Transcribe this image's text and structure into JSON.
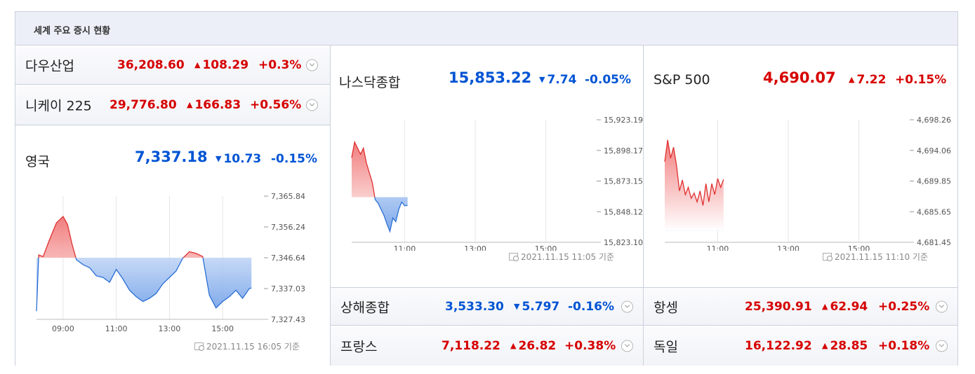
{
  "title": "세계 주요 증시 현황",
  "colors": {
    "up": "#d60000",
    "down": "#0054d4",
    "border": "#c9d0dc"
  },
  "icons": {
    "expand": "chevron-down-icon",
    "stamp": "clock-icon",
    "up": "triangle-up-icon",
    "down": "triangle-down-icon"
  },
  "rows": {
    "dow": {
      "name": "다우산업",
      "value": "36,208.60",
      "dir": "up",
      "arrow": "▲",
      "change": "108.29",
      "pct": "+0.3%"
    },
    "nikkei": {
      "name": "니케이 225",
      "value": "29,776.80",
      "dir": "up",
      "arrow": "▲",
      "change": "166.83",
      "pct": "+0.56%"
    },
    "shanghai": {
      "name": "상해종합",
      "value": "3,533.30",
      "dir": "down",
      "arrow": "▼",
      "change": "5.797",
      "pct": "-0.16%"
    },
    "france": {
      "name": "프랑스",
      "value": "7,118.22",
      "dir": "up",
      "arrow": "▲",
      "change": "26.82",
      "pct": "+0.38%"
    },
    "hangseng": {
      "name": "항셍",
      "value": "25,390.91",
      "dir": "up",
      "arrow": "▲",
      "change": "62.94",
      "pct": "+0.25%"
    },
    "germany": {
      "name": "독일",
      "value": "16,122.92",
      "dir": "up",
      "arrow": "▲",
      "change": "28.85",
      "pct": "+0.18%"
    }
  },
  "cards": {
    "uk": {
      "name": "영국",
      "value": "7,337.18",
      "dir": "down",
      "arrow": "▼",
      "change": "10.73",
      "pct": "-0.15%",
      "stamp": "2021.11.15 16:05 기준"
    },
    "nasdaq": {
      "name": "나스닥종합",
      "value": "15,853.22",
      "dir": "down",
      "arrow": "▼",
      "change": "7.74",
      "pct": "-0.05%",
      "stamp": "2021.11.15 11:05 기준"
    },
    "sp500": {
      "name": "S&P 500",
      "value": "4,690.07",
      "dir": "up",
      "arrow": "▲",
      "change": "7.22",
      "pct": "+0.15%",
      "stamp": "2021.11.15 11:10 기준"
    }
  },
  "chart_data": [
    {
      "id": "uk",
      "type": "area",
      "x_ticks": [
        "09:00",
        "11:00",
        "13:00",
        "15:00"
      ],
      "y_ticks": [
        "7,365.84",
        "7,356.24",
        "7,346.64",
        "7,337.03",
        "7,327.43"
      ],
      "ylim": [
        7327.43,
        7365.84
      ],
      "xlim": [
        "08:00",
        "16:30"
      ],
      "baseline": 7346.64,
      "x": [
        "08:00",
        "08:05",
        "08:15",
        "08:30",
        "08:45",
        "09:00",
        "09:10",
        "09:20",
        "09:30",
        "09:45",
        "10:00",
        "10:15",
        "10:30",
        "10:45",
        "11:00",
        "11:15",
        "11:30",
        "11:45",
        "12:00",
        "12:15",
        "12:30",
        "12:45",
        "13:00",
        "13:15",
        "13:30",
        "13:45",
        "14:00",
        "14:15",
        "14:30",
        "14:45",
        "15:00",
        "15:15",
        "15:30",
        "15:45",
        "16:00",
        "16:05"
      ],
      "y": [
        7330.0,
        7347.5,
        7347.0,
        7352.5,
        7357.5,
        7359.5,
        7357.0,
        7351.0,
        7346.0,
        7344.5,
        7343.5,
        7341.0,
        7340.5,
        7339.0,
        7343.0,
        7340.0,
        7336.5,
        7334.5,
        7333.0,
        7334.0,
        7335.5,
        7338.5,
        7340.5,
        7342.5,
        7346.5,
        7348.5,
        7348.0,
        7347.0,
        7335.0,
        7331.0,
        7333.0,
        7334.5,
        7336.5,
        7334.0,
        7337.0,
        7337.2
      ]
    },
    {
      "id": "nasdaq",
      "type": "area",
      "x_ticks": [
        "11:00",
        "13:00",
        "15:00"
      ],
      "y_ticks": [
        "15,923.19",
        "15,898.17",
        "15,873.15",
        "15,848.12",
        "15,823.10"
      ],
      "ylim": [
        15823.1,
        15923.19
      ],
      "xlim": [
        "09:30",
        "16:30"
      ],
      "baseline": 15860.0,
      "x": [
        "09:30",
        "09:35",
        "09:40",
        "09:45",
        "09:50",
        "09:55",
        "10:00",
        "10:05",
        "10:10",
        "10:15",
        "10:20",
        "10:25",
        "10:30",
        "10:35",
        "10:40",
        "10:45",
        "10:50",
        "10:55",
        "11:00",
        "11:05"
      ],
      "y": [
        15892,
        15905,
        15900,
        15895,
        15900,
        15888,
        15880,
        15872,
        15858,
        15855,
        15850,
        15845,
        15838,
        15832,
        15843,
        15840,
        15850,
        15856,
        15853,
        15853.22
      ]
    },
    {
      "id": "sp500",
      "type": "area",
      "x_ticks": [
        "11:00",
        "13:00",
        "15:00"
      ],
      "y_ticks": [
        "4,698.26",
        "4,694.06",
        "4,689.85",
        "4,685.65",
        "4,681.45"
      ],
      "ylim": [
        4681.45,
        4698.26
      ],
      "xlim": [
        "09:30",
        "16:30"
      ],
      "baseline": 4683.0,
      "x": [
        "09:30",
        "09:35",
        "09:40",
        "09:45",
        "09:50",
        "09:55",
        "10:00",
        "10:05",
        "10:10",
        "10:15",
        "10:20",
        "10:25",
        "10:30",
        "10:35",
        "10:40",
        "10:45",
        "10:50",
        "10:55",
        "11:00",
        "11:05",
        "11:10"
      ],
      "y": [
        4692.5,
        4695.5,
        4693.0,
        4694.5,
        4692.0,
        4688.5,
        4690.0,
        4688.0,
        4689.0,
        4687.5,
        4688.2,
        4687.0,
        4688.5,
        4686.5,
        4689.5,
        4687.0,
        4689.5,
        4688.0,
        4690.2,
        4689.0,
        4690.07
      ]
    }
  ]
}
